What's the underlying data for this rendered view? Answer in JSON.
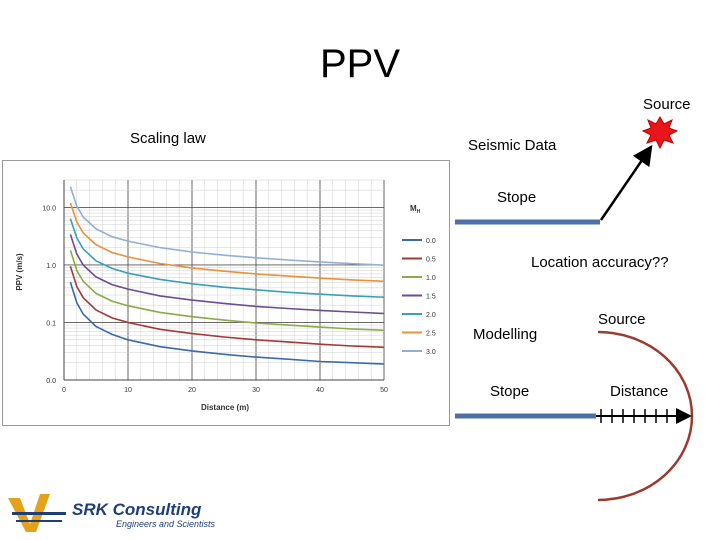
{
  "slide": {
    "title": "PPV",
    "labels": {
      "scaling_law": "Scaling law",
      "seismic_data": "Seismic Data",
      "source_top": "Source",
      "stope_top": "Stope",
      "location_accuracy": "Location accuracy??",
      "modelling": "Modelling",
      "source_bottom": "Source",
      "stope_bottom": "Stope",
      "distance": "Distance"
    }
  },
  "logo": {
    "name": "SRK Consulting",
    "tagline": "Engineers and Scientists",
    "color": "#1f3f7a",
    "accent": "#e3a21a"
  },
  "colors": {
    "stope_bar": "#4f6fa8",
    "arrow": "#000000",
    "source_burst": "#e8151b",
    "arc": "#9b3a2e"
  },
  "chart_data": {
    "type": "line",
    "xlabel": "Distance (m)",
    "ylabel": "PPV (m/s)",
    "legend_title": "M",
    "legend_title_sub": "H",
    "legend_position": "right",
    "log_y": true,
    "grid": true,
    "xlim": [
      0,
      50
    ],
    "ylim": [
      0.01,
      30
    ],
    "x_ticks": [
      "0",
      "10",
      "20",
      "30",
      "40",
      "50"
    ],
    "y_ticks": [
      {
        "v": 10,
        "label": "10.0"
      },
      {
        "v": 1,
        "label": "1.0"
      },
      {
        "v": 0.1,
        "label": "0.1"
      },
      {
        "v": 0.01,
        "label": "0.0"
      }
    ],
    "x": [
      1,
      2,
      3,
      5,
      7.5,
      10,
      15,
      20,
      25,
      30,
      35,
      40,
      45,
      50
    ],
    "series": [
      {
        "name": "0.0",
        "color": "#3b6aa6",
        "values": [
          0.5,
          0.22,
          0.14,
          0.085,
          0.062,
          0.05,
          0.038,
          0.032,
          0.028,
          0.025,
          0.023,
          0.021,
          0.02,
          0.019
        ]
      },
      {
        "name": "0.5",
        "color": "#a33a35",
        "values": [
          0.95,
          0.42,
          0.27,
          0.165,
          0.12,
          0.1,
          0.076,
          0.064,
          0.056,
          0.05,
          0.046,
          0.042,
          0.039,
          0.037
        ]
      },
      {
        "name": "1.0",
        "color": "#8aab45",
        "values": [
          1.8,
          0.8,
          0.52,
          0.32,
          0.235,
          0.195,
          0.15,
          0.126,
          0.11,
          0.098,
          0.09,
          0.083,
          0.077,
          0.073
        ]
      },
      {
        "name": "1.5",
        "color": "#6a4f91",
        "values": [
          3.4,
          1.55,
          1.0,
          0.62,
          0.455,
          0.38,
          0.29,
          0.245,
          0.215,
          0.19,
          0.175,
          0.162,
          0.152,
          0.143
        ]
      },
      {
        "name": "2.0",
        "color": "#3aa0b8",
        "values": [
          6.4,
          2.95,
          1.9,
          1.18,
          0.87,
          0.72,
          0.56,
          0.47,
          0.41,
          0.37,
          0.335,
          0.31,
          0.29,
          0.275
        ]
      },
      {
        "name": "2.5",
        "color": "#e8923a",
        "values": [
          12,
          5.6,
          3.6,
          2.25,
          1.65,
          1.38,
          1.06,
          0.89,
          0.78,
          0.7,
          0.64,
          0.59,
          0.55,
          0.52
        ]
      },
      {
        "name": "3.0",
        "color": "#93aed3",
        "values": [
          23,
          10.5,
          6.8,
          4.25,
          3.1,
          2.6,
          2.0,
          1.68,
          1.48,
          1.33,
          1.22,
          1.13,
          1.05,
          0.99
        ]
      }
    ]
  }
}
